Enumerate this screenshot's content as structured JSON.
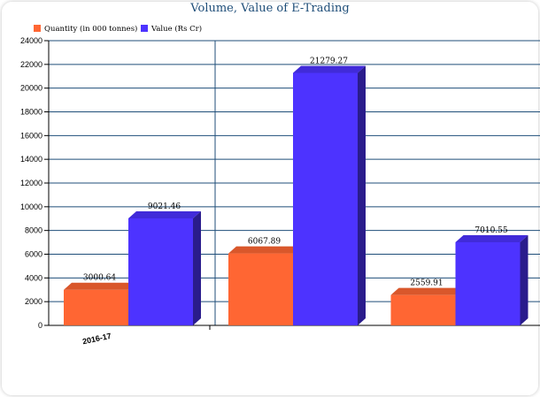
{
  "chart_data": {
    "type": "bar",
    "title": "Volume, Value of E-Trading",
    "categories": [
      "2016-17",
      "",
      ""
    ],
    "series": [
      {
        "name": "Quantity (in 000 tonnes)",
        "color": "#FF6633",
        "values": [
          3000.64,
          6067.89,
          2559.91
        ]
      },
      {
        "name": "Value (Rs Cr)",
        "color": "#4D33FF",
        "values": [
          9021.46,
          21279.27,
          7010.55
        ]
      }
    ],
    "ylim": [
      0,
      24000
    ],
    "yticks": [
      0,
      2000,
      4000,
      6000,
      8000,
      10000,
      12000,
      14000,
      16000,
      18000,
      20000,
      22000,
      24000
    ],
    "grid": true,
    "legend_position": "top-left",
    "style": {
      "grid_color": "#1F4E79",
      "title_color": "#1F4E79"
    }
  }
}
